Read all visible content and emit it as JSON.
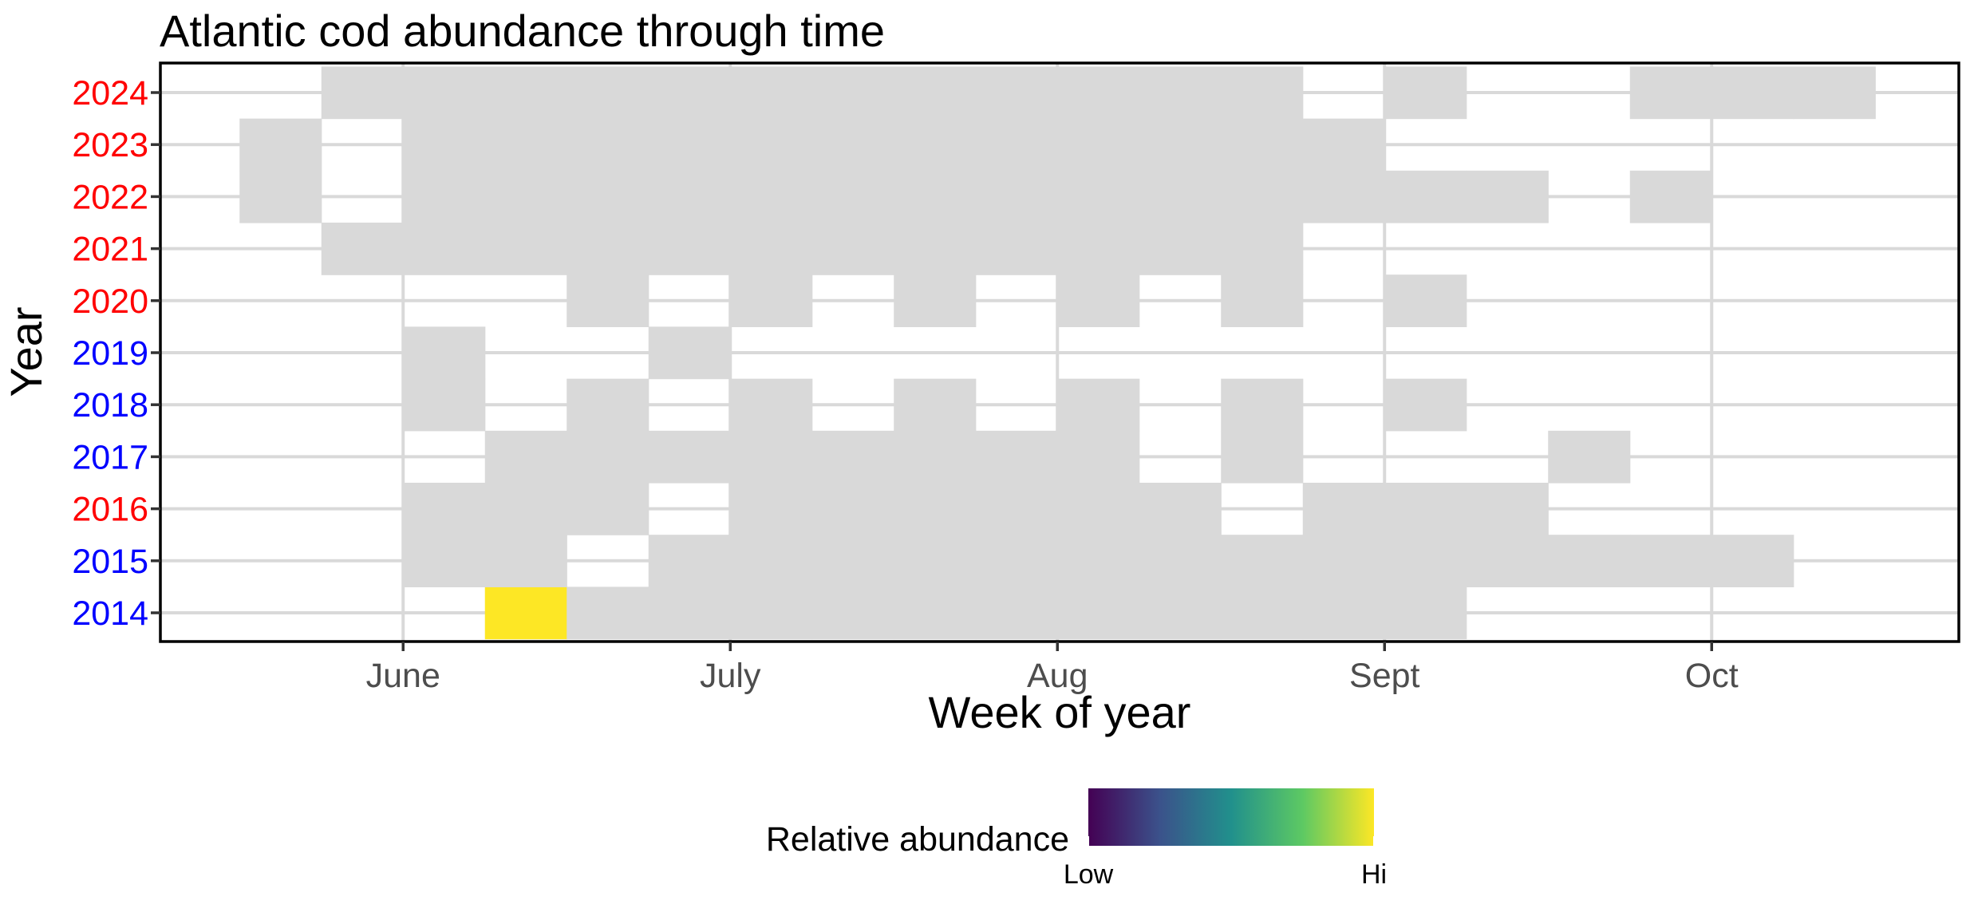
{
  "chart_data": {
    "type": "heatmap",
    "title": "Atlantic cod abundance through time",
    "xlabel": "Week of year",
    "ylabel": "Year",
    "x_ticks": [
      {
        "label": "June",
        "week": 22.5
      },
      {
        "label": "July",
        "week": 26.5
      },
      {
        "label": "Aug",
        "week": 30.5
      },
      {
        "label": "Sept",
        "week": 34.5
      },
      {
        "label": "Oct",
        "week": 38.5
      }
    ],
    "xlim_weeks": [
      20,
      42
    ],
    "years": [
      2014,
      2015,
      2016,
      2017,
      2018,
      2019,
      2020,
      2021,
      2022,
      2023,
      2024
    ],
    "year_label_colors": {
      "2014": "#0000ff",
      "2015": "#0000ff",
      "2016": "#ff0000",
      "2017": "#0000ff",
      "2018": "#0000ff",
      "2019": "#0000ff",
      "2020": "#ff0000",
      "2021": "#ff0000",
      "2022": "#ff0000",
      "2023": "#ff0000",
      "2024": "#ff0000"
    },
    "absent_color": "#d9d9d9",
    "cells": {
      "2014": {
        "24": 1,
        "25": 0,
        "26": 0,
        "27": 0,
        "28": 0,
        "29": 0,
        "30": 0,
        "31": 0,
        "32": 0,
        "33": 0,
        "34": 0,
        "35": 0
      },
      "2015": {
        "23": 0,
        "24": 0,
        "26": 0,
        "27": 0,
        "28": 0,
        "29": 0,
        "30": 0,
        "31": 0,
        "32": 0,
        "33": 0,
        "34": 0,
        "35": 0,
        "36": 0,
        "37": 0,
        "38": 0,
        "39": 0
      },
      "2016": {
        "23": 0,
        "24": 0,
        "25": 0,
        "27": 0,
        "28": 0,
        "29": 0,
        "30": 0,
        "31": 0,
        "32": 0,
        "34": 0,
        "35": 0,
        "36": 0
      },
      "2017": {
        "24": 0,
        "25": 0,
        "26": 0,
        "27": 0,
        "28": 0,
        "29": 0,
        "30": 0,
        "31": 0,
        "33": 0,
        "37": 0
      },
      "2018": {
        "23": 0,
        "25": 0,
        "27": 0,
        "29": 0,
        "31": 0,
        "33": 0,
        "35": 0
      },
      "2019": {
        "23": 0,
        "26": 0
      },
      "2020": {
        "25": 0,
        "27": 0,
        "29": 0,
        "31": 0,
        "33": 0,
        "35": 0
      },
      "2021": {
        "22": 0,
        "23": 0,
        "24": 0,
        "25": 0,
        "26": 0,
        "27": 0,
        "28": 0,
        "29": 0,
        "30": 0,
        "31": 0,
        "32": 0,
        "33": 0
      },
      "2022": {
        "21": 0,
        "23": 0,
        "24": 0,
        "25": 0,
        "26": 0,
        "27": 0,
        "28": 0,
        "29": 0,
        "30": 0,
        "31": 0,
        "32": 0,
        "33": 0,
        "34": 0,
        "35": 0,
        "36": 0,
        "38": 0
      },
      "2023": {
        "21": 0,
        "23": 0,
        "24": 0,
        "25": 0,
        "26": 0,
        "27": 0,
        "28": 0,
        "29": 0,
        "30": 0,
        "31": 0,
        "32": 0,
        "33": 0,
        "34": 0
      },
      "2024": {
        "22": 0,
        "23": 0,
        "24": 0,
        "25": 0,
        "26": 0,
        "27": 0,
        "28": 0,
        "29": 0,
        "30": 0,
        "31": 0,
        "32": 0,
        "33": 0,
        "35": 0,
        "38": 0,
        "39": 0,
        "40": 0
      }
    },
    "colorscale": [
      "#440154",
      "#3b528b",
      "#21908c",
      "#5dc963",
      "#fde725"
    ],
    "legend": {
      "title": "Relative abundance",
      "low_label": "Low",
      "high_label": "Hi",
      "position": "bottom"
    },
    "grid": true
  }
}
